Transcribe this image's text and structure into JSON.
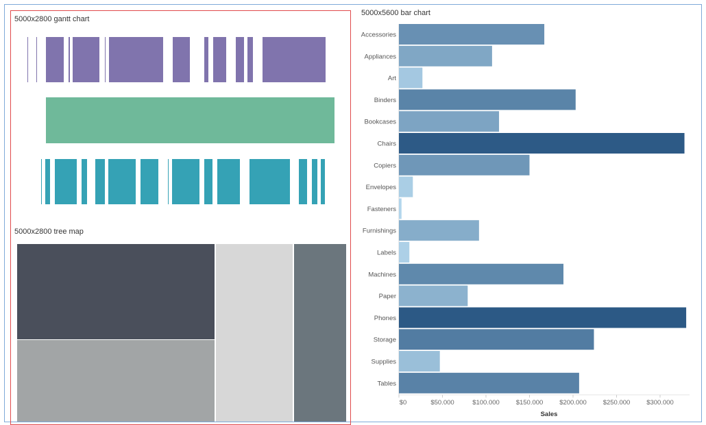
{
  "gantt": {
    "title": "5000x2800 gantt chart",
    "colors": [
      "#8074ad",
      "#6fb99a",
      "#35a2b5"
    ],
    "rows": [
      {
        "segments": [
          [
            32,
            33
          ],
          [
            45,
            46
          ],
          [
            59,
            85
          ],
          [
            92,
            94
          ],
          [
            98,
            137
          ],
          [
            145,
            146
          ],
          [
            151,
            230
          ],
          [
            244,
            269
          ],
          [
            290,
            296
          ],
          [
            303,
            322
          ],
          [
            336,
            348
          ],
          [
            353,
            361
          ],
          [
            375,
            467
          ]
        ]
      },
      {
        "segments": [
          [
            59,
            480
          ]
        ]
      },
      {
        "segments": [
          [
            52,
            53
          ],
          [
            58,
            65
          ],
          [
            72,
            104
          ],
          [
            111,
            119
          ],
          [
            131,
            145
          ],
          [
            150,
            190
          ],
          [
            197,
            223
          ],
          [
            237,
            238
          ],
          [
            243,
            283
          ],
          [
            290,
            302
          ],
          [
            309,
            342
          ],
          [
            356,
            415
          ],
          [
            428,
            440
          ],
          [
            447,
            455
          ],
          [
            460,
            466
          ]
        ]
      }
    ]
  },
  "treemap": {
    "title": "5000x2800 tree map",
    "cells": [
      {
        "name": "cell-1",
        "color": "#4a4f5b"
      },
      {
        "name": "cell-2",
        "color": "#a2a5a6"
      },
      {
        "name": "cell-3",
        "color": "#d7d7d7"
      },
      {
        "name": "cell-4",
        "color": "#6b767d"
      }
    ]
  },
  "chart_data": {
    "type": "bar",
    "orientation": "horizontal",
    "title": "5000x5600 bar chart",
    "xlabel": "Sales",
    "ylabel": "",
    "categories": [
      "Accessories",
      "Appliances",
      "Art",
      "Binders",
      "Bookcases",
      "Chairs",
      "Copiers",
      "Envelopes",
      "Fasteners",
      "Furnishings",
      "Labels",
      "Machines",
      "Paper",
      "Phones",
      "Storage",
      "Supplies",
      "Tables"
    ],
    "values": [
      167000,
      107000,
      27000,
      203000,
      115000,
      328000,
      150000,
      16000,
      3000,
      92000,
      12000,
      189000,
      79000,
      330000,
      224000,
      47000,
      207000
    ],
    "xlim": [
      0,
      340000
    ],
    "ticks": [
      0,
      50000,
      100000,
      150000,
      200000,
      250000,
      300000
    ],
    "tick_labels": [
      "$0",
      "$50.000",
      "$100.000",
      "$150.000",
      "$200.000",
      "$250.000",
      "$300.000"
    ],
    "color_range": [
      "#b3d6ec",
      "#2c5985"
    ],
    "grid": false
  }
}
